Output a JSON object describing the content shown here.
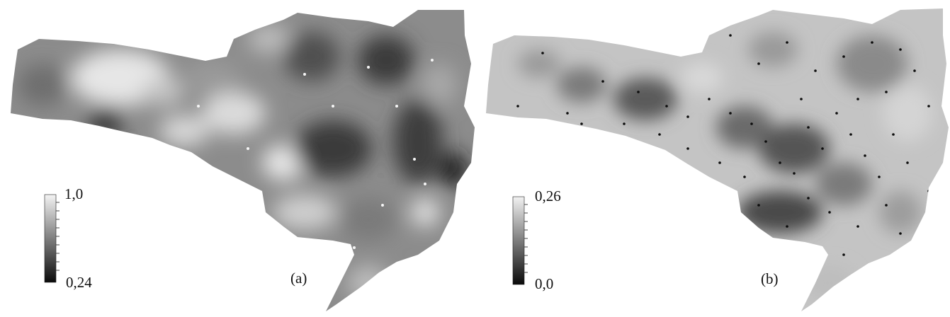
{
  "maps": [
    {
      "panel_label": "(a)",
      "scale_max": "1,0",
      "scale_min": "0,24",
      "ramp": [
        "#0a0a0a",
        "#f4f4f4"
      ]
    },
    {
      "panel_label": "(b)",
      "scale_max": "0,26",
      "scale_min": "0,0",
      "ramp": [
        "#0a0a0a",
        "#f2f2f2"
      ]
    }
  ]
}
